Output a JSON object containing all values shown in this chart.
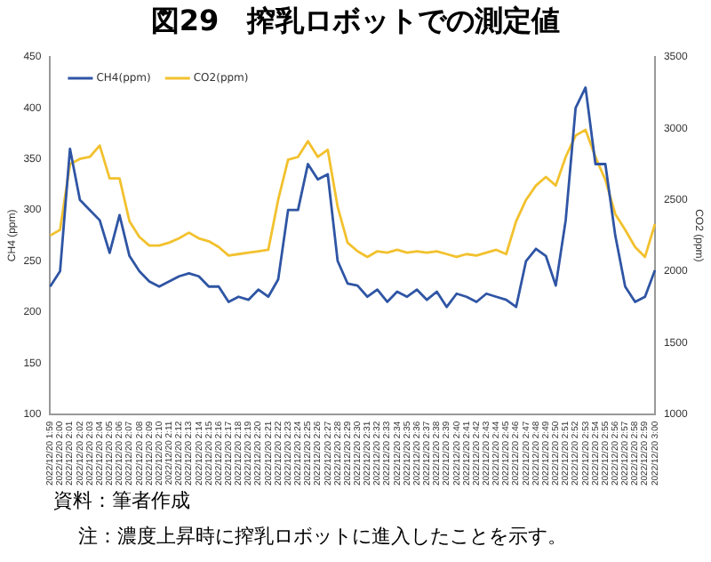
{
  "chart_data": {
    "type": "line",
    "title": "図29　搾乳ロボットでの測定値",
    "ylabel": "CH4 (ppm)",
    "y2label": "CO2 (ppm)",
    "categories": [
      "2022/12/20 1:59",
      "2022/12/20 2:00",
      "2022/12/20 2:01",
      "2022/12/20 2:02",
      "2022/12/20 2:03",
      "2022/12/20 2:04",
      "2022/12/20 2:05",
      "2022/12/20 2:06",
      "2022/12/20 2:07",
      "2022/12/20 2:08",
      "2022/12/20 2:09",
      "2022/12/20 2:10",
      "2022/12/20 2:11",
      "2022/12/20 2:12",
      "2022/12/20 2:13",
      "2022/12/20 2:14",
      "2022/12/20 2:15",
      "2022/12/20 2:16",
      "2022/12/20 2:17",
      "2022/12/20 2:18",
      "2022/12/20 2:19",
      "2022/12/20 2:20",
      "2022/12/20 2:21",
      "2022/12/20 2:22",
      "2022/12/20 2:23",
      "2022/12/20 2:24",
      "2022/12/20 2:25",
      "2022/12/20 2:26",
      "2022/12/20 2:27",
      "2022/12/20 2:28",
      "2022/12/20 2:29",
      "2022/12/20 2:30",
      "2022/12/20 2:31",
      "2022/12/20 2:32",
      "2022/12/20 2:33",
      "2022/12/20 2:34",
      "2022/12/20 2:35",
      "2022/12/20 2:36",
      "2022/12/20 2:37",
      "2022/12/20 2:38",
      "2022/12/20 2:39",
      "2022/12/20 2:40",
      "2022/12/20 2:41",
      "2022/12/20 2:42",
      "2022/12/20 2:43",
      "2022/12/20 2:44",
      "2022/12/20 2:45",
      "2022/12/20 2:46",
      "2022/12/20 2:47",
      "2022/12/20 2:48",
      "2022/12/20 2:49",
      "2022/12/20 2:50",
      "2022/12/20 2:51",
      "2022/12/20 2:52",
      "2022/12/20 2:53",
      "2022/12/20 2:54",
      "2022/12/20 2:55",
      "2022/12/20 2:56",
      "2022/12/20 2:57",
      "2022/12/20 2:58",
      "2022/12/20 2:59",
      "2022/12/20 3:00"
    ],
    "series": [
      {
        "name": "CH4(ppm)",
        "color": "#2f55a4",
        "values": [
          225,
          240,
          360,
          310,
          300,
          290,
          258,
          295,
          255,
          240,
          230,
          225,
          230,
          235,
          238,
          235,
          225,
          225,
          210,
          215,
          212,
          222,
          215,
          232,
          300,
          300,
          345,
          330,
          335,
          250,
          228,
          226,
          215,
          222,
          210,
          220,
          215,
          222,
          212,
          220,
          205,
          218,
          215,
          210,
          218,
          215,
          212,
          205,
          250,
          262,
          255,
          226,
          290,
          400,
          420,
          345,
          345,
          275,
          225,
          210,
          215,
          241
        ]
      },
      {
        "name": "CO2(ppm)",
        "color": "#f2c12e",
        "axis": "y2",
        "values": [
          2250,
          2290,
          2750,
          2786,
          2800,
          2880,
          2650,
          2650,
          2350,
          2240,
          2180,
          2180,
          2200,
          2230,
          2270,
          2230,
          2210,
          2170,
          2110,
          2120,
          2130,
          2140,
          2150,
          2500,
          2780,
          2800,
          2910,
          2800,
          2850,
          2450,
          2200,
          2140,
          2100,
          2140,
          2130,
          2150,
          2130,
          2140,
          2130,
          2140,
          2120,
          2100,
          2120,
          2110,
          2130,
          2150,
          2120,
          2350,
          2500,
          2600,
          2660,
          2600,
          2800,
          2950,
          2990,
          2800,
          2640,
          2400,
          2290,
          2170,
          2100,
          2330
        ]
      }
    ],
    "ylim": [
      100,
      450
    ],
    "yticks": [
      100,
      150,
      200,
      250,
      300,
      350,
      400,
      450
    ],
    "y2lim": [
      1000,
      3500
    ],
    "y2ticks": [
      1000,
      1500,
      2000,
      2500,
      3000,
      3500
    ],
    "legend": "top left",
    "grid": false,
    "marker": "none",
    "line_style": "solid",
    "annotations": [
      "資料：筆者作成",
      "注：濃度上昇時に搾乳ロボットに進入したことを示す。"
    ]
  }
}
